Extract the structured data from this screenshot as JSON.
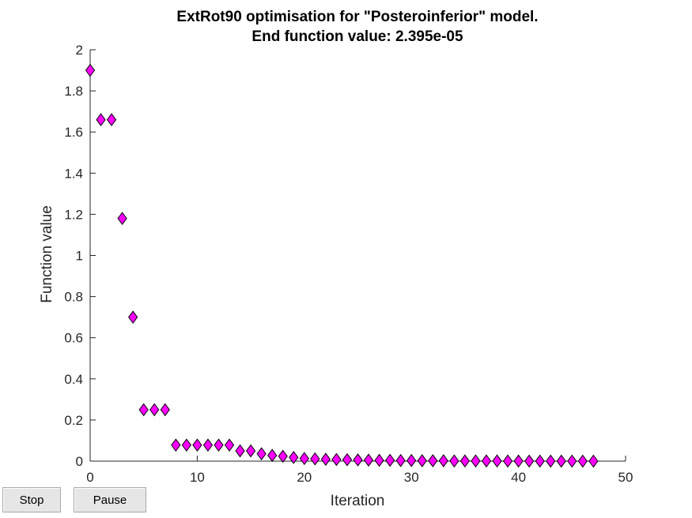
{
  "chart_data": {
    "type": "scatter",
    "title": "ExtRot90 optimisation for \"Posteroinferior\" model.",
    "subtitle": "End function value: 2.395e-05",
    "xlabel": "Iteration",
    "ylabel": "Function value",
    "xlim": [
      0,
      50
    ],
    "ylim": [
      0,
      2
    ],
    "xticks": [
      "0",
      "10",
      "20",
      "30",
      "40",
      "50"
    ],
    "yticks": [
      "0",
      "0.2",
      "0.4",
      "0.6",
      "0.8",
      "1",
      "1.2",
      "1.4",
      "1.6",
      "1.8",
      "2"
    ],
    "grid": false,
    "marker": "diamond",
    "marker_color": "#ff00ff",
    "marker_edge_color": "#000000",
    "series": [
      {
        "x": [
          0,
          1,
          2,
          3,
          4,
          5,
          6,
          7,
          8,
          9,
          10,
          11,
          12,
          13,
          14,
          15,
          16,
          17,
          18,
          19,
          20,
          21,
          22,
          23,
          24,
          25,
          26,
          27,
          28,
          29,
          30,
          31,
          32,
          33,
          34,
          35,
          36,
          37,
          38,
          39,
          40,
          41,
          42,
          43,
          44,
          45,
          46,
          47
        ],
        "y": [
          1.9,
          1.66,
          1.66,
          1.18,
          0.7,
          0.25,
          0.25,
          0.25,
          0.078,
          0.078,
          0.078,
          0.078,
          0.078,
          0.078,
          0.05,
          0.05,
          0.036,
          0.028,
          0.024,
          0.018,
          0.013,
          0.011,
          0.009,
          0.008,
          0.007,
          0.006,
          0.005,
          0.004,
          0.004,
          0.003,
          0.003,
          0.002,
          0.002,
          0.002,
          0.001,
          0.001,
          0.001,
          0.001,
          0.001,
          0.0005,
          0.0004,
          0.0003,
          0.0002,
          0.0001,
          0.0001,
          5e-05,
          3e-05,
          2.4e-05
        ]
      }
    ]
  },
  "controls": {
    "stop_label": "Stop",
    "pause_label": "Pause"
  }
}
